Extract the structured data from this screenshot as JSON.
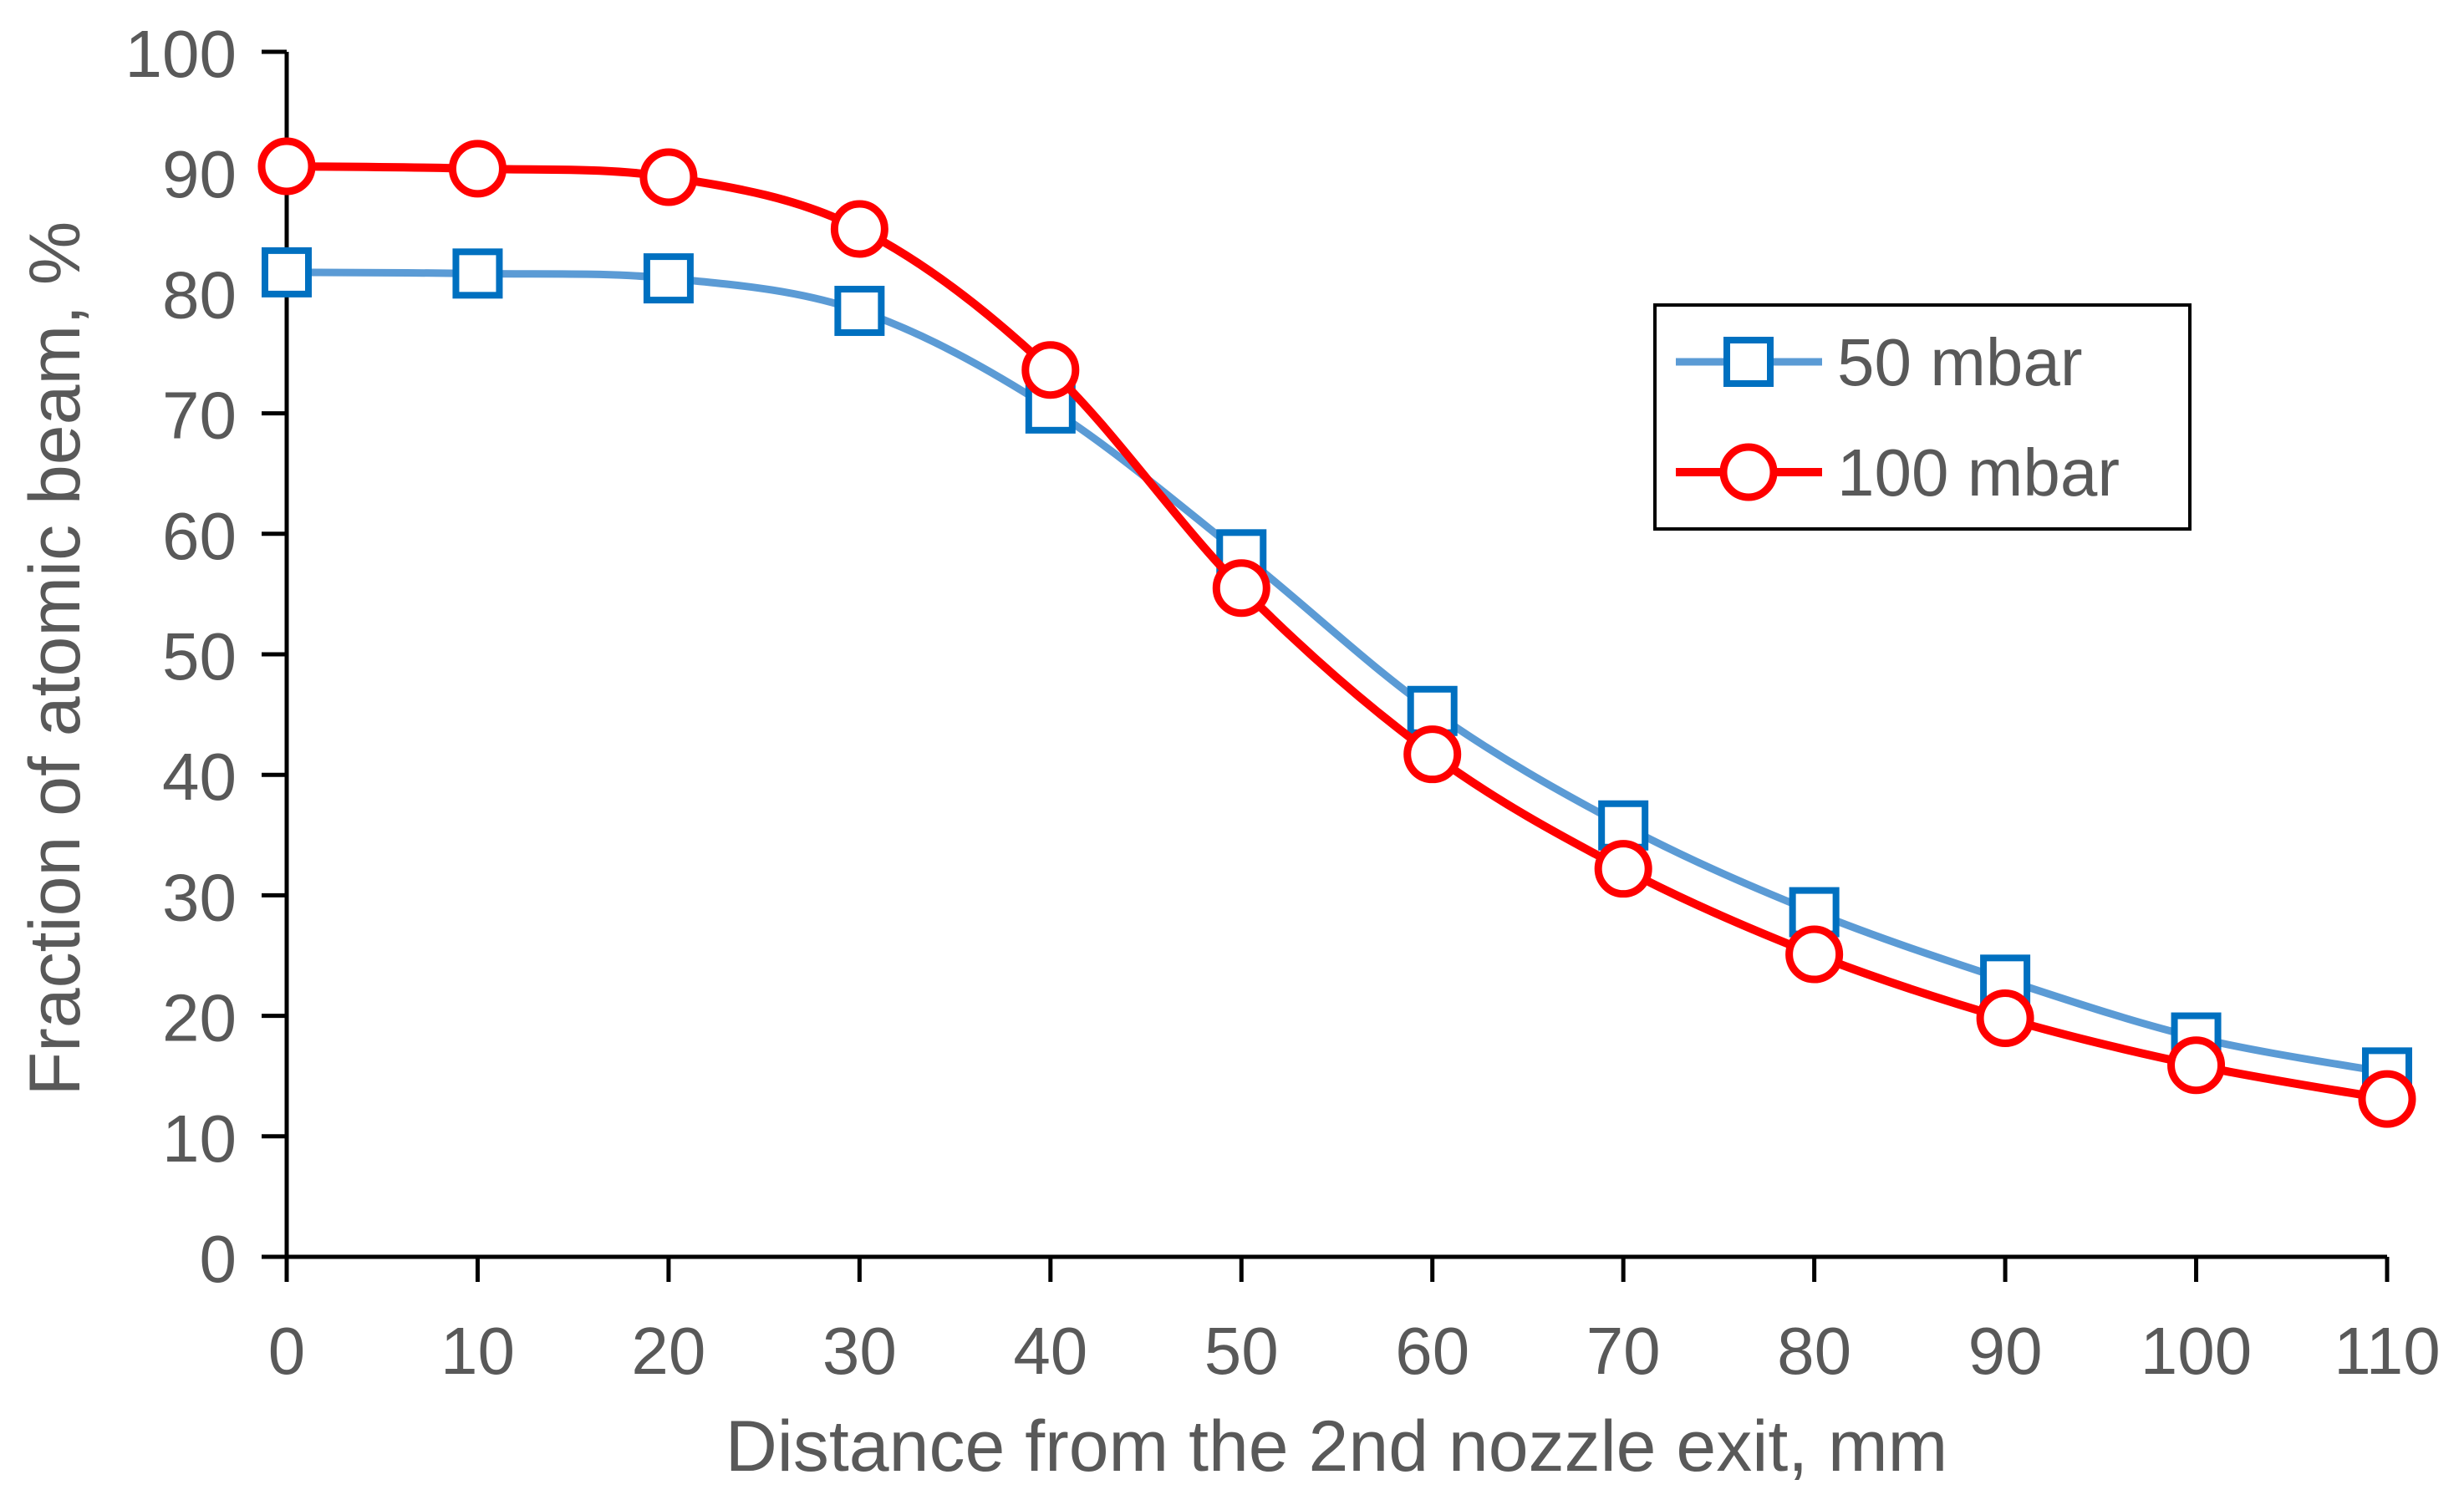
{
  "chart_data": {
    "type": "line",
    "title": "",
    "xlabel": "Distance from the 2nd nozzle exit, mm",
    "ylabel": "Fraction of atomic beam, %",
    "xlim": [
      0,
      110
    ],
    "ylim": [
      0,
      100
    ],
    "x_ticks": [
      0,
      10,
      20,
      30,
      40,
      50,
      60,
      70,
      80,
      90,
      100,
      110
    ],
    "y_ticks": [
      0,
      10,
      20,
      30,
      40,
      50,
      60,
      70,
      80,
      90,
      100
    ],
    "grid": false,
    "legend_position": "top-right",
    "x": [
      0,
      10,
      20,
      30,
      40,
      50,
      60,
      70,
      80,
      90,
      100,
      110
    ],
    "series": [
      {
        "name": "50 mbar",
        "color": "#5b9bd5",
        "marker_color": "#0070c0",
        "marker": "square",
        "values": [
          81.7,
          81.6,
          81.2,
          78.5,
          70.4,
          58.3,
          45.3,
          35.8,
          28.6,
          23.0,
          18.2,
          15.3
        ]
      },
      {
        "name": "100 mbar",
        "color": "#ff0000",
        "marker_color": "#ff0000",
        "marker": "circle",
        "values": [
          90.5,
          90.3,
          89.6,
          85.3,
          73.6,
          55.5,
          41.7,
          32.2,
          25.1,
          19.8,
          15.9,
          13.1
        ]
      }
    ]
  }
}
